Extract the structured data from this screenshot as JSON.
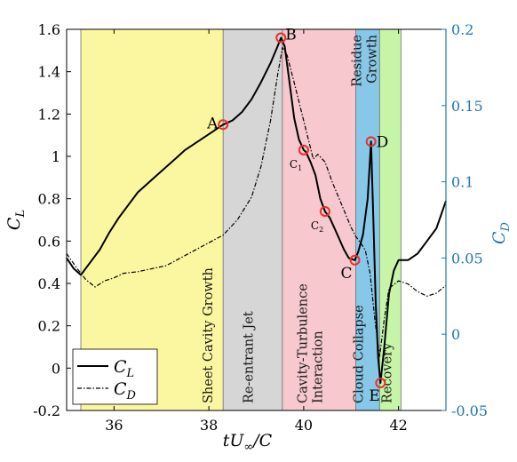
{
  "chart_data": {
    "type": "line",
    "xlabel": "tU∞/C",
    "ylabel_left": "C_L",
    "ylabel_right": "C_D",
    "xlim": [
      35.0,
      43.0
    ],
    "ylim_left": [
      -0.2,
      1.6
    ],
    "ylim_right": [
      -0.05,
      0.2
    ],
    "xticks": [
      36,
      38,
      40,
      42
    ],
    "yticks_left": [
      -0.2,
      0,
      0.2,
      0.4,
      0.6,
      0.8,
      1.0,
      1.2,
      1.4,
      1.6
    ],
    "yticks_left_labels": [
      "-0.2",
      "0",
      "0.2",
      "0.4",
      "0.6",
      "0.8",
      "1",
      "1.2",
      "1.4",
      "1.6"
    ],
    "yticks_right": [
      -0.05,
      0,
      0.05,
      0.1,
      0.15,
      0.2
    ],
    "yticks_right_labels": [
      "-0.05",
      "0",
      "0.05",
      "0.1",
      "0.15",
      "0.2"
    ],
    "colors": {
      "right_axis": "#1f77b4",
      "marker": "#e8302a"
    },
    "legend": {
      "position": "bottom-left",
      "entries": [
        {
          "label": "C_L",
          "style": "solid"
        },
        {
          "label": "C_D",
          "style": "dash-dot"
        }
      ]
    },
    "phases": [
      {
        "label": "Sheet Cavity Growth",
        "x_start": 35.3,
        "x_end": 38.3,
        "color": "#fbf7a0"
      },
      {
        "label": "Re-entrant Jet",
        "x_start": 38.3,
        "x_end": 39.55,
        "color": "#d6d6d6"
      },
      {
        "label_lines": [
          "Cavity-Turbulence",
          "Interaction"
        ],
        "x_start": 39.55,
        "x_end": 41.1,
        "color": "#f7c8cd"
      },
      {
        "label": "Cloud Collapse",
        "x_start": 41.1,
        "x_end": 41.6,
        "color": "#87c8e8"
      },
      {
        "label_lines": [
          "Residue",
          "Growth"
        ],
        "x_start": 41.1,
        "x_end": 41.6,
        "label_position": "top"
      },
      {
        "label": "Recovery",
        "x_start": 41.6,
        "x_end": 42.05,
        "color": "#c6f5a8"
      }
    ],
    "markers": [
      {
        "label": "A",
        "x": 38.3,
        "y": 1.15
      },
      {
        "label": "B",
        "x": 39.52,
        "y": 1.56
      },
      {
        "label": "C1",
        "x": 40.0,
        "y": 1.03
      },
      {
        "label": "C2",
        "x": 40.45,
        "y": 0.74
      },
      {
        "label": "C",
        "x": 41.08,
        "y": 0.51
      },
      {
        "label": "D",
        "x": 41.42,
        "y": 1.07
      },
      {
        "label": "E",
        "x": 41.62,
        "y": -0.07
      }
    ],
    "series": [
      {
        "name": "C_L",
        "axis": "left",
        "x": [
          35.0,
          35.15,
          35.3,
          35.5,
          35.7,
          35.9,
          36.1,
          36.3,
          36.5,
          36.7,
          36.9,
          37.1,
          37.3,
          37.5,
          37.7,
          37.9,
          38.1,
          38.3,
          38.5,
          38.7,
          38.9,
          39.1,
          39.3,
          39.45,
          39.52,
          39.6,
          39.7,
          39.8,
          39.9,
          40.0,
          40.05,
          40.15,
          40.25,
          40.35,
          40.45,
          40.55,
          40.65,
          40.75,
          40.85,
          40.95,
          41.08,
          41.15,
          41.25,
          41.35,
          41.42,
          41.47,
          41.52,
          41.57,
          41.62,
          41.7,
          41.8,
          41.9,
          42.0,
          42.2,
          42.4,
          42.6,
          42.8,
          43.0
        ],
        "y": [
          0.52,
          0.47,
          0.44,
          0.5,
          0.56,
          0.64,
          0.71,
          0.77,
          0.83,
          0.87,
          0.91,
          0.95,
          0.99,
          1.03,
          1.06,
          1.09,
          1.12,
          1.15,
          1.17,
          1.21,
          1.27,
          1.35,
          1.44,
          1.52,
          1.56,
          1.52,
          1.35,
          1.18,
          1.08,
          1.03,
          1.02,
          0.97,
          0.91,
          0.8,
          0.74,
          0.71,
          0.66,
          0.61,
          0.56,
          0.52,
          0.51,
          0.55,
          0.63,
          0.8,
          1.07,
          0.7,
          0.3,
          0.05,
          -0.07,
          0.1,
          0.35,
          0.46,
          0.51,
          0.51,
          0.54,
          0.6,
          0.66,
          0.79
        ]
      },
      {
        "name": "C_D",
        "axis": "right",
        "x": [
          35.0,
          35.2,
          35.4,
          35.6,
          35.8,
          36.0,
          36.2,
          36.5,
          36.8,
          37.1,
          37.4,
          37.7,
          38.0,
          38.3,
          38.6,
          38.9,
          39.1,
          39.3,
          39.45,
          39.55,
          39.65,
          39.8,
          40.0,
          40.2,
          40.3,
          40.45,
          40.6,
          40.8,
          41.0,
          41.1,
          41.2,
          41.3,
          41.4,
          41.5,
          41.6,
          41.7,
          41.8,
          42.0,
          42.2,
          42.4,
          42.6,
          42.8,
          43.0
        ],
        "y": [
          0.053,
          0.044,
          0.036,
          0.031,
          0.035,
          0.037,
          0.04,
          0.041,
          0.043,
          0.045,
          0.05,
          0.055,
          0.06,
          0.065,
          0.075,
          0.09,
          0.11,
          0.14,
          0.17,
          0.188,
          0.183,
          0.165,
          0.14,
          0.115,
          0.118,
          0.113,
          0.1,
          0.085,
          0.07,
          0.064,
          0.06,
          0.055,
          0.04,
          0.01,
          -0.015,
          0.01,
          0.03,
          0.035,
          0.033,
          0.028,
          0.025,
          0.027,
          0.032
        ]
      }
    ]
  }
}
